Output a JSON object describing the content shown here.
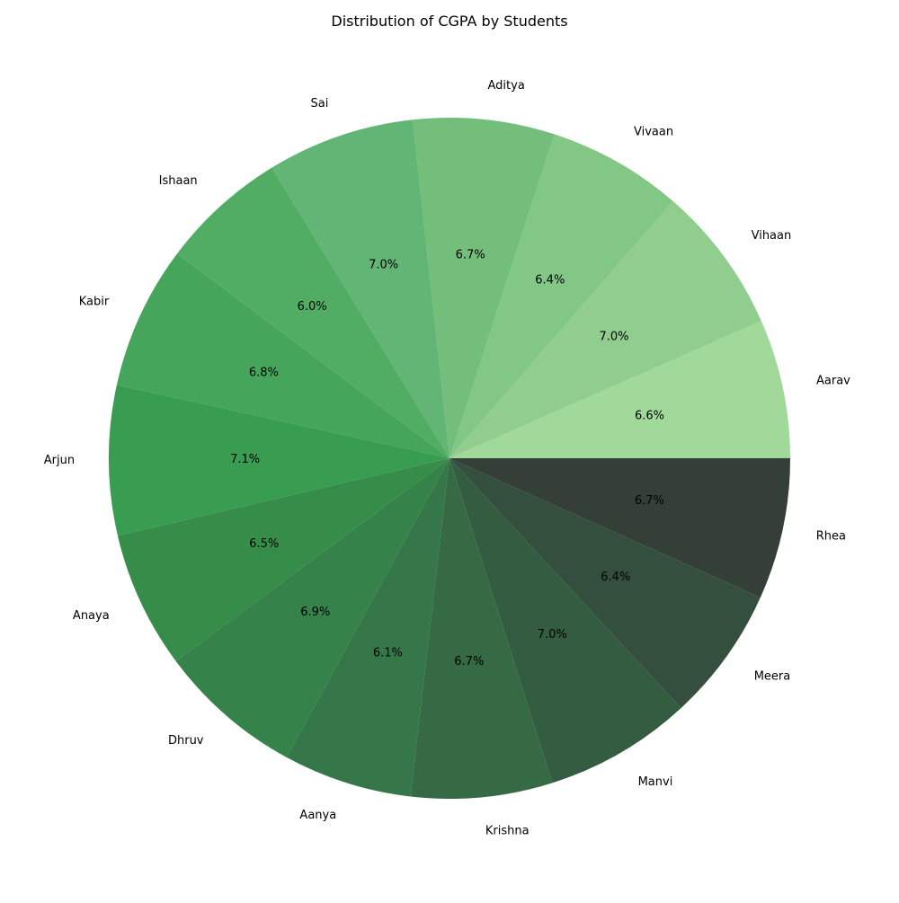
{
  "chart_data": {
    "type": "pie",
    "title": "Distribution of CGPA by Students",
    "start_angle_deg": 0,
    "direction": "counterclockwise",
    "categories": [
      "Aarav",
      "Vihaan",
      "Vivaan",
      "Aditya",
      "Sai",
      "Ishaan",
      "Kabir",
      "Arjun",
      "Anaya",
      "Dhruv",
      "Aanya",
      "Krishna",
      "Manvi",
      "Meera",
      "Rhea"
    ],
    "percent_labels": [
      "6.6%",
      "7.0%",
      "6.4%",
      "6.7%",
      "7.0%",
      "6.0%",
      "6.8%",
      "7.1%",
      "6.5%",
      "6.9%",
      "6.1%",
      "6.7%",
      "7.0%",
      "6.4%",
      "6.7%"
    ],
    "values": [
      6.6,
      7.0,
      6.4,
      6.7,
      7.0,
      6.0,
      6.8,
      7.1,
      6.5,
      6.9,
      6.1,
      6.7,
      7.0,
      6.4,
      6.7
    ],
    "colors": [
      "#a1d99b",
      "#90cd8e",
      "#83c787",
      "#73be7b",
      "#62b574",
      "#52ad64",
      "#45a65b",
      "#389d51",
      "#368d4a",
      "#35834a",
      "#357748",
      "#356a45",
      "#345c40",
      "#354f3e",
      "#333f37"
    ]
  }
}
